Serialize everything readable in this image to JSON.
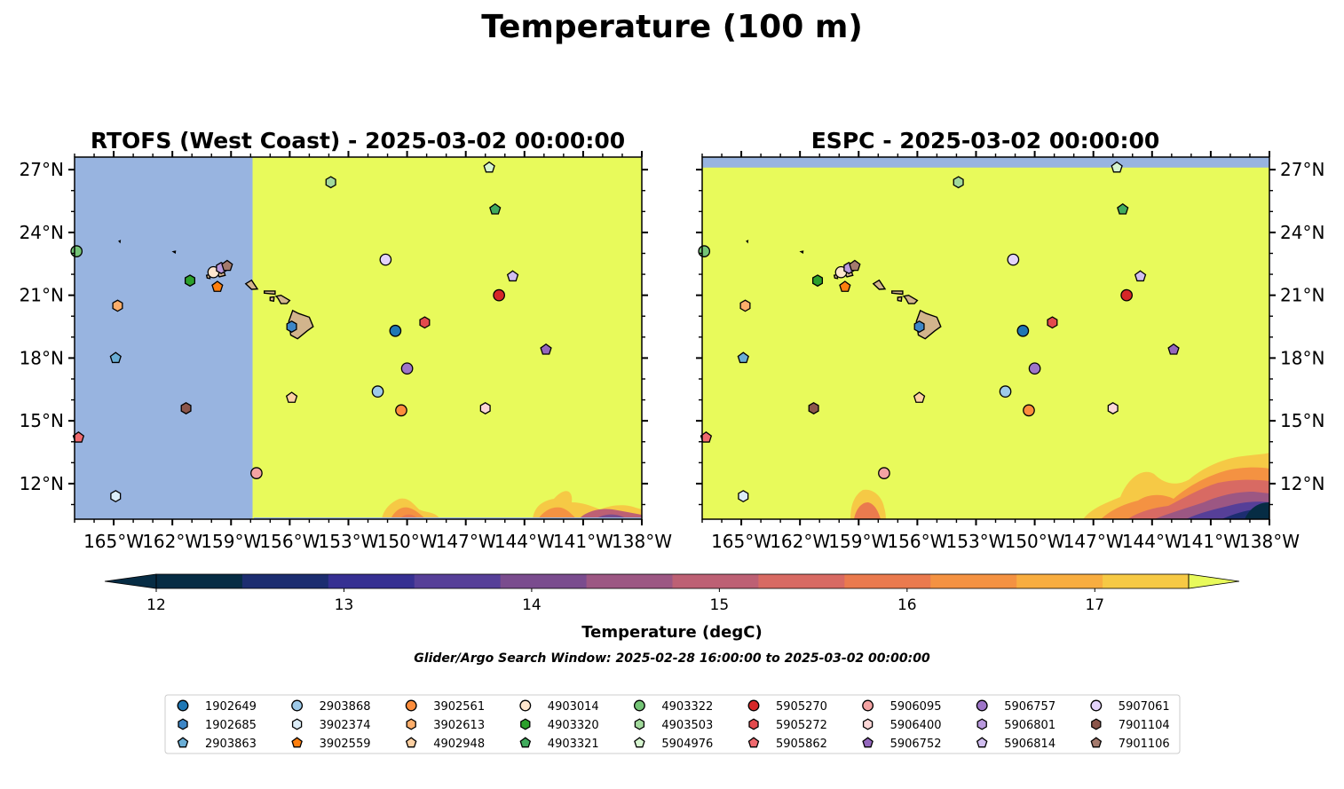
{
  "figure": {
    "suptitle": "Temperature (100 m)",
    "search_window": "Glider/Argo Search Window: 2025-02-28 16:00:00 to 2025-03-02 00:00:00"
  },
  "chart_data": [
    {
      "type": "map",
      "title": "RTOFS (West Coast) - 2025-03-02 00:00:00",
      "xlim": [
        -167,
        -138
      ],
      "ylim": [
        10.3,
        27.6
      ],
      "x_ticks": [
        -165,
        -162,
        -159,
        -156,
        -153,
        -150,
        -147,
        -144,
        -141,
        -138
      ],
      "x_tick_labels": [
        "165°W",
        "162°W",
        "159°W",
        "156°W",
        "153°W",
        "150°W",
        "147°W",
        "144°W",
        "141°W",
        "138°W"
      ],
      "y_ticks": [
        12,
        15,
        18,
        21,
        24,
        27
      ],
      "y_tick_labels": [
        "12°N",
        "15°N",
        "18°N",
        "21°N",
        "24°N",
        "27°N"
      ],
      "y_axis_side": "left",
      "no_data_region": {
        "lon": [
          -167,
          -157.9
        ],
        "lat": [
          10.3,
          27.6
        ]
      },
      "no_data_color": "#98b4e0",
      "background_value_degC": 17.6
    },
    {
      "type": "map",
      "title": "ESPC - 2025-03-02 00:00:00",
      "xlim": [
        -167,
        -138
      ],
      "ylim": [
        10.3,
        27.6
      ],
      "x_ticks": [
        -165,
        -162,
        -159,
        -156,
        -153,
        -150,
        -147,
        -144,
        -141,
        -138
      ],
      "x_tick_labels": [
        "165°W",
        "162°W",
        "159°W",
        "156°W",
        "153°W",
        "150°W",
        "147°W",
        "144°W",
        "141°W",
        "138°W"
      ],
      "y_ticks": [
        12,
        15,
        18,
        21,
        24,
        27
      ],
      "y_tick_labels": [
        "12°N",
        "15°N",
        "18°N",
        "21°N",
        "24°N",
        "27°N"
      ],
      "y_axis_side": "right",
      "no_data_region": {
        "lon": [
          -167,
          -138
        ],
        "lat": [
          27.1,
          27.6
        ]
      },
      "no_data_color": "#98b4e0",
      "background_value_degC": 17.6
    }
  ],
  "colorbar": {
    "label": "Temperature (degC)",
    "range": [
      12,
      17.5
    ],
    "ticks": [
      12,
      13,
      14,
      15,
      16,
      17
    ],
    "tick_labels": [
      "12",
      "13",
      "14",
      "15",
      "16",
      "17"
    ],
    "colors": [
      "#062c44",
      "#1c2d70",
      "#363092",
      "#563f98",
      "#7a4c8e",
      "#9c5783",
      "#bd6074",
      "#d86a63",
      "#ea7a4e",
      "#f49242",
      "#f8ad40",
      "#f6c945"
    ],
    "extend_low_color": "#062c44",
    "extend_high_color": "#e8fa5b"
  },
  "floats": [
    {
      "id": "1902649",
      "marker": "circle",
      "color": "#1f77b4",
      "lon": -150.6,
      "lat": 19.3
    },
    {
      "id": "1902685",
      "marker": "hexagon",
      "color": "#3d86c6",
      "lon": -155.9,
      "lat": 19.5
    },
    {
      "id": "2903863",
      "marker": "pentagon",
      "color": "#6aaed6",
      "lon": -164.9,
      "lat": 18.0
    },
    {
      "id": "2903868",
      "marker": "circle",
      "color": "#9ecae9",
      "lon": -151.5,
      "lat": 16.4
    },
    {
      "id": "3902374",
      "marker": "hexagon",
      "color": "#dcedf8",
      "lon": -164.9,
      "lat": 11.4
    },
    {
      "id": "3902559",
      "marker": "pentagon",
      "color": "#ff7f0e",
      "lon": -159.7,
      "lat": 21.4
    },
    {
      "id": "3902561",
      "marker": "circle",
      "color": "#fd8d3c",
      "lon": -150.3,
      "lat": 15.5
    },
    {
      "id": "3902613",
      "marker": "hexagon",
      "color": "#fdae6b",
      "lon": -164.8,
      "lat": 20.5
    },
    {
      "id": "4902948",
      "marker": "pentagon",
      "color": "#fdd0a2",
      "lon": -155.9,
      "lat": 16.1
    },
    {
      "id": "4903014",
      "marker": "circle",
      "color": "#fee6ce",
      "lon": -159.9,
      "lat": 22.1
    },
    {
      "id": "4903320",
      "marker": "hexagon",
      "color": "#2ca02c",
      "lon": -161.1,
      "lat": 21.7
    },
    {
      "id": "4903321",
      "marker": "pentagon",
      "color": "#41ab5d",
      "lon": -145.5,
      "lat": 25.1
    },
    {
      "id": "4903322",
      "marker": "circle",
      "color": "#74c476",
      "lon": -166.9,
      "lat": 23.1
    },
    {
      "id": "4903503",
      "marker": "hexagon",
      "color": "#a1d99b",
      "lon": -153.9,
      "lat": 26.4
    },
    {
      "id": "5904976",
      "marker": "pentagon",
      "color": "#d7f5d0",
      "lon": -145.8,
      "lat": 27.1
    },
    {
      "id": "5905270",
      "marker": "circle",
      "color": "#d62728",
      "lon": -145.3,
      "lat": 21.0
    },
    {
      "id": "5905272",
      "marker": "hexagon",
      "color": "#e34a4d",
      "lon": -149.1,
      "lat": 19.7
    },
    {
      "id": "5905862",
      "marker": "pentagon",
      "color": "#f06a6f",
      "lon": -166.8,
      "lat": 14.2
    },
    {
      "id": "5906095",
      "marker": "circle",
      "color": "#f4a3a3",
      "lon": -157.7,
      "lat": 12.5
    },
    {
      "id": "5906400",
      "marker": "hexagon",
      "color": "#fcd7d7",
      "lon": -146.0,
      "lat": 15.6
    },
    {
      "id": "5906752",
      "marker": "pentagon",
      "color": "#9467bd",
      "lon": -142.9,
      "lat": 18.4
    },
    {
      "id": "5906757",
      "marker": "circle",
      "color": "#9e75c8",
      "lon": -150.0,
      "lat": 17.5
    },
    {
      "id": "5906801",
      "marker": "hexagon",
      "color": "#b999dd",
      "lon": -159.5,
      "lat": 22.3
    },
    {
      "id": "5906814",
      "marker": "pentagon",
      "color": "#d1bef0",
      "lon": -144.6,
      "lat": 21.9
    },
    {
      "id": "5907061",
      "marker": "circle",
      "color": "#e3d3fa",
      "lon": -151.1,
      "lat": 22.7
    },
    {
      "id": "7901104",
      "marker": "hexagon",
      "color": "#8c564b",
      "lon": -161.3,
      "lat": 15.6
    },
    {
      "id": "7901106",
      "marker": "pentagon",
      "color": "#a47a6d",
      "lon": -159.2,
      "lat": 22.4
    }
  ],
  "icons": {
    "map": "hawaii-island-outlines"
  }
}
